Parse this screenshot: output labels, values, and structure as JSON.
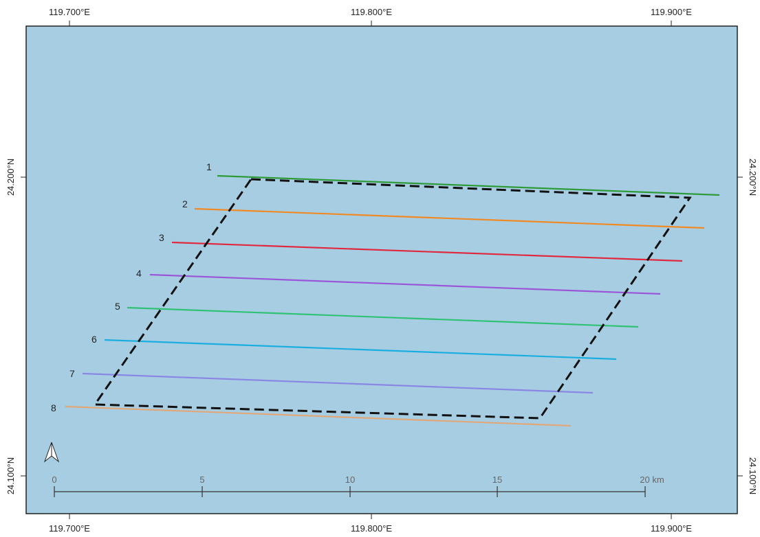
{
  "map": {
    "background_color": "#a7cde2",
    "frame_color": "#222222",
    "longitude_labels_top": [
      "119.700°E",
      "119.800°E",
      "119.900°E"
    ],
    "longitude_labels_bottom": [
      "119.700°E",
      "119.800°E",
      "119.900°E"
    ],
    "latitude_labels_left": [
      "24.200°N",
      "24.100°N"
    ],
    "latitude_labels_right": [
      "24.200°N",
      "24.100°N"
    ],
    "north_arrow_icon": "north-arrow-icon",
    "survey_area": {
      "style": "dashed",
      "color": "#111111"
    },
    "lines": [
      {
        "label": "1",
        "color": "#2e9b3a"
      },
      {
        "label": "2",
        "color": "#f08a24"
      },
      {
        "label": "3",
        "color": "#e0283f"
      },
      {
        "label": "4",
        "color": "#9a56d8"
      },
      {
        "label": "5",
        "color": "#2fc274"
      },
      {
        "label": "6",
        "color": "#1aaee0"
      },
      {
        "label": "7",
        "color": "#8a86e4"
      },
      {
        "label": "8",
        "color": "#e0a87a"
      }
    ],
    "scale_bar": {
      "labels": [
        "0",
        "5",
        "10",
        "15",
        "20 km"
      ]
    }
  }
}
